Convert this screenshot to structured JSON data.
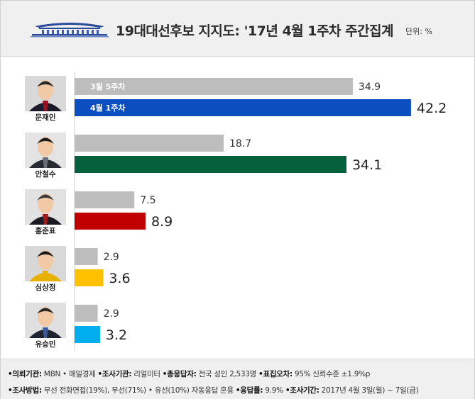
{
  "header": {
    "title": "19대대선후보 지지도: '17년 4월 1주차 주간집계",
    "unit": "단위: %"
  },
  "chart_data": {
    "type": "bar",
    "orientation": "horizontal",
    "title": "19대대선후보 지지도: '17년 4월 1주차 주간집계",
    "unit": "%",
    "categories": [
      "문재인",
      "안철수",
      "홍준표",
      "심상정",
      "유승민"
    ],
    "series": [
      {
        "name": "3월 5주차",
        "color": "#bdbdbd",
        "values": [
          34.9,
          18.7,
          7.5,
          2.9,
          2.9
        ]
      },
      {
        "name": "4월 1주차",
        "colors": [
          "#0b4ec2",
          "#05613d",
          "#c00000",
          "#ffc000",
          "#00aef0"
        ],
        "values": [
          42.2,
          34.1,
          8.9,
          3.6,
          3.2
        ]
      }
    ],
    "xlim": [
      0,
      50
    ],
    "grid": false
  },
  "footer": {
    "line1": [
      {
        "label": "•의뢰기관:",
        "value": " MBN • 매일경제 "
      },
      {
        "label": "•조사기관:",
        "value": " 리얼미터 "
      },
      {
        "label": "•총응답자:",
        "value": " 전국 성인 2,533명 "
      },
      {
        "label": "•표집오차:",
        "value": " 95% 신뢰수준 ±1.9%p"
      }
    ],
    "line2": [
      {
        "label": "•조사방법:",
        "value": " 무선 전화면접(19%), 무선(71%) • 유선(10%) 자동응답 혼용 "
      },
      {
        "label": "•응답률:",
        "value": " 9.9% "
      },
      {
        "label": "•조사기간:",
        "value": " 2017년 4월 3일(월) ~ 7일(금)"
      }
    ]
  }
}
